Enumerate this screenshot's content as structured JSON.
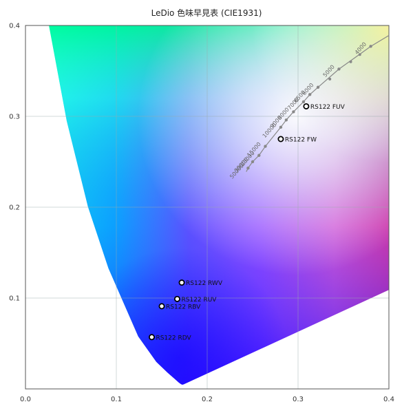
{
  "chart_data": {
    "type": "scatter",
    "title": "LeDio 色味早見表 (CIE1931)",
    "xlim": [
      0.0,
      0.4
    ],
    "ylim": [
      0.0,
      0.4
    ],
    "x_ticks": [
      "0.0",
      "0.1",
      "0.2",
      "0.3",
      "0.4"
    ],
    "y_ticks": [
      "0.1",
      "0.2",
      "0.3",
      "0.4"
    ],
    "grid": true,
    "series": [
      {
        "points": [
          {
            "label": "RS122 FUV",
            "x": 0.309,
            "y": 0.311
          },
          {
            "label": "RS122 FW",
            "x": 0.281,
            "y": 0.275
          },
          {
            "label": "RS122 RWV",
            "x": 0.172,
            "y": 0.117
          },
          {
            "label": "RS122 RUV",
            "x": 0.167,
            "y": 0.099
          },
          {
            "label": "RS122 RBV",
            "x": 0.15,
            "y": 0.091
          },
          {
            "label": "RS122 RDV",
            "x": 0.139,
            "y": 0.057
          }
        ]
      }
    ],
    "planckian_locus": {
      "labels": [
        {
          "text": "4000",
          "x": 0.38,
          "y": 0.377
        },
        {
          "text": "5000",
          "x": 0.345,
          "y": 0.352
        },
        {
          "text": "6000",
          "x": 0.322,
          "y": 0.332
        },
        {
          "text": "6500",
          "x": 0.313,
          "y": 0.324
        },
        {
          "text": "7000",
          "x": 0.306,
          "y": 0.316
        },
        {
          "text": "8000",
          "x": 0.295,
          "y": 0.305
        },
        {
          "text": "9000",
          "x": 0.287,
          "y": 0.296
        },
        {
          "text": "10000",
          "x": 0.281,
          "y": 0.288
        },
        {
          "text": "15000",
          "x": 0.264,
          "y": 0.267
        },
        {
          "text": "20000",
          "x": 0.257,
          "y": 0.257
        },
        {
          "text": "30000",
          "x": 0.25,
          "y": 0.25
        },
        {
          "text": "50000",
          "x": 0.245,
          "y": 0.243
        }
      ]
    }
  }
}
